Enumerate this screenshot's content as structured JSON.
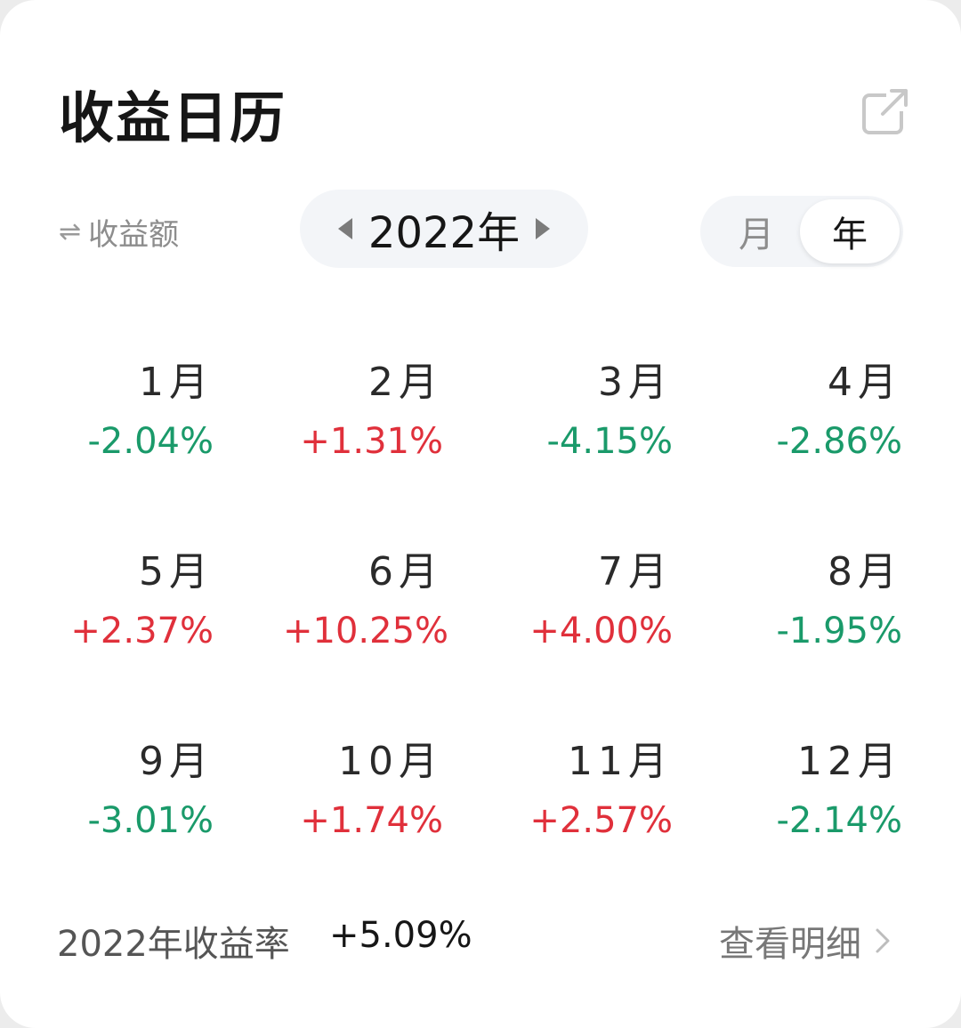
{
  "title": "收益日历",
  "metric_toggle": {
    "icon": "⇌",
    "label": "收益额"
  },
  "year_selector": {
    "year": "2022年"
  },
  "view_toggle": {
    "month": "月",
    "year": "年",
    "selected": "年"
  },
  "months": [
    {
      "label": "1月",
      "value": "-2.04%",
      "trend": "down"
    },
    {
      "label": "2月",
      "value": "+1.31%",
      "trend": "up"
    },
    {
      "label": "3月",
      "value": "-4.15%",
      "trend": "down"
    },
    {
      "label": "4月",
      "value": "-2.86%",
      "trend": "down"
    },
    {
      "label": "5月",
      "value": "+2.37%",
      "trend": "up"
    },
    {
      "label": "6月",
      "value": "+10.25%",
      "trend": "up"
    },
    {
      "label": "7月",
      "value": "+4.00%",
      "trend": "up"
    },
    {
      "label": "8月",
      "value": "-1.95%",
      "trend": "down"
    },
    {
      "label": "9月",
      "value": "-3.01%",
      "trend": "down"
    },
    {
      "label": "10月",
      "value": "+1.74%",
      "trend": "up"
    },
    {
      "label": "11月",
      "value": "+2.57%",
      "trend": "up"
    },
    {
      "label": "12月",
      "value": "-2.14%",
      "trend": "down"
    }
  ],
  "footer": {
    "annual_label": "2022年收益率",
    "annual_value": "+5.09%",
    "detail_link": "查看明细"
  },
  "colors": {
    "up": "#e0303b",
    "down": "#1a9a6a"
  },
  "icons": {
    "share": "share-icon",
    "prev": "caret-left-icon",
    "next": "caret-right-icon",
    "detail": "chevron-right-icon"
  }
}
